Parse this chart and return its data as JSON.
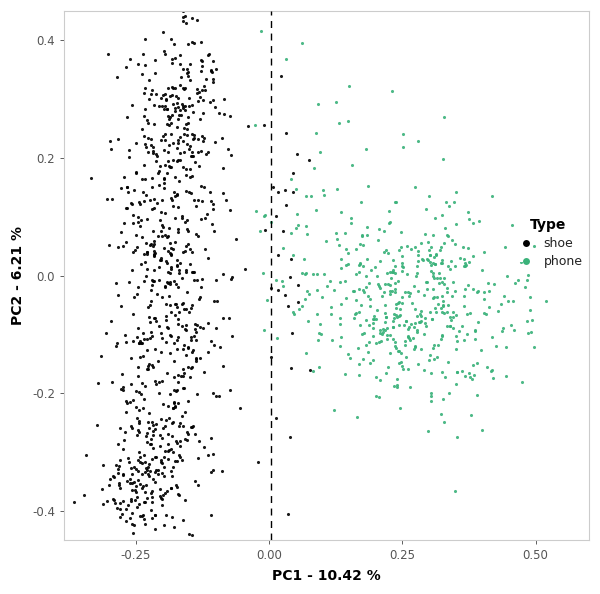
{
  "xlabel": "PC1 - 10.42 %",
  "ylabel": "PC2 - 6.21 %",
  "xlim": [
    -0.385,
    0.6
  ],
  "ylim": [
    -0.45,
    0.45
  ],
  "xticks": [
    -0.25,
    0.0,
    0.25,
    0.5
  ],
  "yticks": [
    -0.4,
    -0.2,
    0.0,
    0.2,
    0.4
  ],
  "shoe_color": "#000000",
  "phone_color": "#3ab27a",
  "dashed_line_x": 0.003,
  "point_size": 5,
  "alpha": 0.9,
  "background_color": "#ffffff",
  "legend_title": "Type",
  "legend_labels": [
    "shoe",
    "phone"
  ]
}
